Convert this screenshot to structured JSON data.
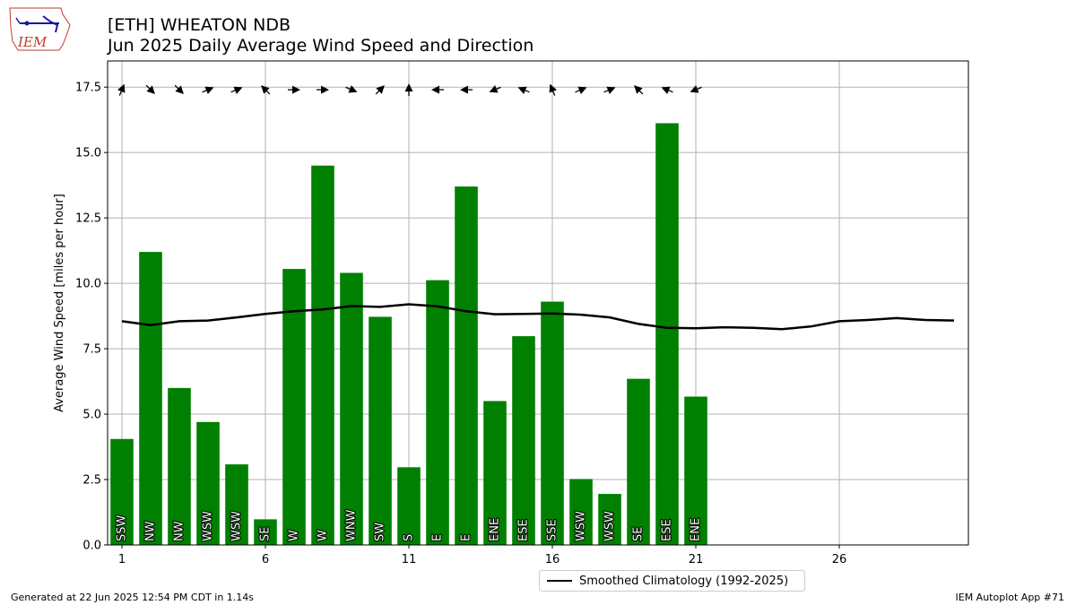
{
  "header": {
    "title_line1": "[ETH] WHEATON NDB",
    "title_line2": "Jun 2025 Daily Average Wind Speed and Direction"
  },
  "logo": {
    "text": "IEM"
  },
  "footer": {
    "left": "Generated at 22 Jun 2025 12:54 PM CDT in 1.14s",
    "right": "IEM Autoplot App #71"
  },
  "legend": {
    "label": "Smoothed Climatology (1992-2025)"
  },
  "colors": {
    "bar": "#008000",
    "line": "#000000",
    "grid": "#b0b0b0"
  },
  "chart_data": {
    "type": "bar",
    "ylabel": "Average Wind Speed [miles per hour]",
    "xlabel": "",
    "xlim": [
      0.5,
      30.5
    ],
    "ylim": [
      0,
      18.5
    ],
    "xticks": [
      1,
      6,
      11,
      16,
      21,
      26
    ],
    "yticks": [
      0.0,
      2.5,
      5.0,
      7.5,
      10.0,
      12.5,
      15.0,
      17.5
    ],
    "grid": true,
    "legend_position": "below-center",
    "days": [
      1,
      2,
      3,
      4,
      5,
      6,
      7,
      8,
      9,
      10,
      11,
      12,
      13,
      14,
      15,
      16,
      17,
      18,
      19,
      20,
      21
    ],
    "values": [
      4.05,
      11.2,
      6.0,
      4.7,
      3.08,
      0.98,
      10.55,
      14.5,
      10.4,
      8.72,
      2.97,
      10.12,
      13.7,
      5.5,
      7.98,
      9.3,
      2.52,
      1.95,
      6.35,
      16.12,
      5.67
    ],
    "directions": [
      "SSW",
      "NW",
      "NW",
      "WSW",
      "WSW",
      "SE",
      "W",
      "W",
      "WNW",
      "SW",
      "S",
      "E",
      "E",
      "ENE",
      "ESE",
      "SSE",
      "WSW",
      "WSW",
      "SE",
      "ESE",
      "ENE"
    ],
    "climatology": {
      "name": "Smoothed Climatology (1992-2025)",
      "x": [
        1,
        2,
        3,
        4,
        5,
        6,
        7,
        8,
        9,
        10,
        11,
        12,
        13,
        14,
        15,
        16,
        17,
        18,
        19,
        20,
        21,
        22,
        23,
        24,
        25,
        26,
        27,
        28,
        29,
        30
      ],
      "values": [
        8.55,
        8.4,
        8.55,
        8.58,
        8.7,
        8.83,
        8.93,
        9.0,
        9.13,
        9.1,
        9.2,
        9.12,
        8.93,
        8.82,
        8.83,
        8.85,
        8.8,
        8.7,
        8.45,
        8.3,
        8.28,
        8.32,
        8.3,
        8.25,
        8.35,
        8.55,
        8.6,
        8.67,
        8.6,
        8.58
      ]
    }
  }
}
